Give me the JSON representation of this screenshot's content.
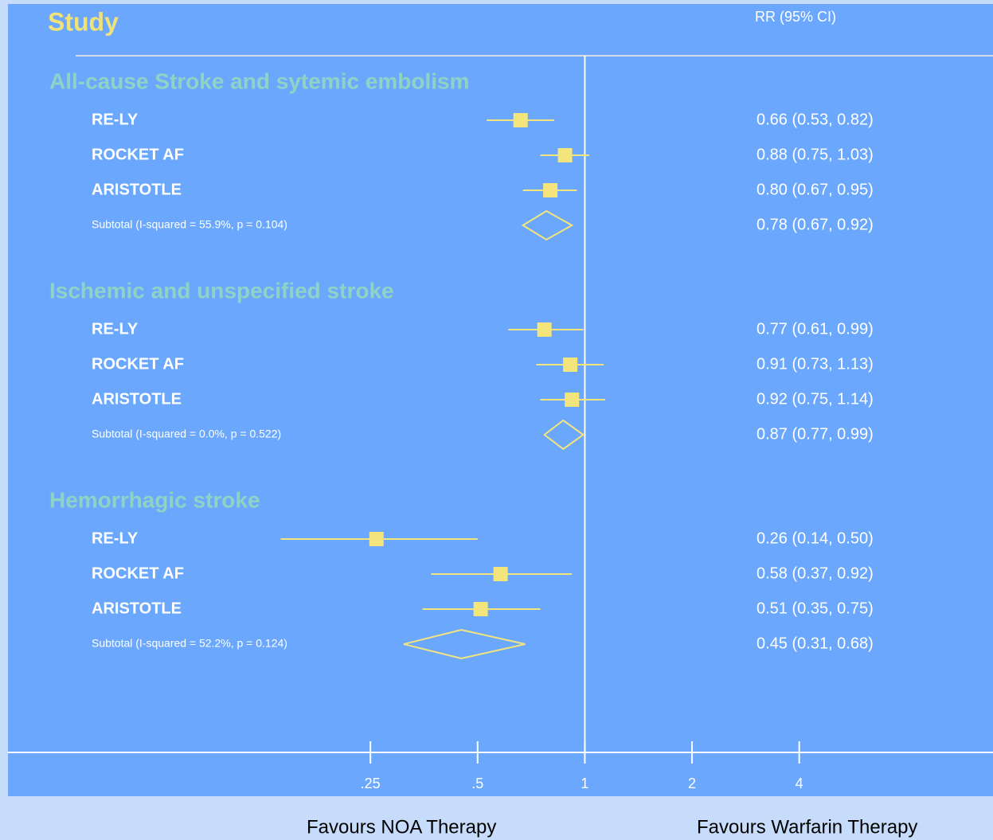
{
  "chart_data": {
    "type": "forest",
    "title": "Study",
    "estimate_header": "RR (95% CI)",
    "x_left_label": "Favours NOA Therapy",
    "x_right_label": "Favours Warfarin Therapy",
    "xscale": "log",
    "xlim": [
      0.024,
      14
    ],
    "xticks": [
      {
        "value": 0.25,
        "label": ".25"
      },
      {
        "value": 0.5,
        "label": ".5"
      },
      1,
      2,
      4
    ],
    "color": "#f4e47c",
    "group_color": "#8fd2c6",
    "groups": [
      {
        "name": "All-cause Stroke and sytemic embolism",
        "studies": [
          {
            "name": "RE-LY",
            "values": [
              0.66,
              0.53,
              0.82
            ],
            "value_label": "0.66 (0.53, 0.82)"
          },
          {
            "name": "ROCKET AF",
            "values": [
              0.88,
              0.75,
              1.03
            ],
            "value_label": "0.88 (0.75, 1.03)"
          },
          {
            "name": "ARISTOTLE",
            "values": [
              0.8,
              0.67,
              0.95
            ],
            "value_label": "0.80 (0.67, 0.95)"
          }
        ],
        "subtotal": {
          "label": "Subtotal  (I-squared = 55.9%, p = 0.104)",
          "values": [
            0.78,
            0.67,
            0.92
          ],
          "value_label": "0.78 (0.67, 0.92)"
        }
      },
      {
        "name": "Ischemic and unspecified stroke",
        "studies": [
          {
            "name": "RE-LY",
            "values": [
              0.77,
              0.61,
              0.99
            ],
            "value_label": "0.77 (0.61, 0.99)"
          },
          {
            "name": "ROCKET AF",
            "values": [
              0.91,
              0.73,
              1.13
            ],
            "value_label": "0.91 (0.73, 1.13)"
          },
          {
            "name": "ARISTOTLE",
            "values": [
              0.92,
              0.75,
              1.14
            ],
            "value_label": "0.92 (0.75, 1.14)"
          }
        ],
        "subtotal": {
          "label": "Subtotal  (I-squared = 0.0%, p = 0.522)",
          "values": [
            0.87,
            0.77,
            0.99
          ],
          "value_label": "0.87 (0.77, 0.99)"
        }
      },
      {
        "name": "Hemorrhagic stroke",
        "studies": [
          {
            "name": "RE-LY",
            "values": [
              0.26,
              0.14,
              0.5
            ],
            "value_label": "0.26 (0.14, 0.50)"
          },
          {
            "name": "ROCKET AF",
            "values": [
              0.58,
              0.37,
              0.92
            ],
            "value_label": "0.58 (0.37, 0.92)"
          },
          {
            "name": "ARISTOTLE",
            "values": [
              0.51,
              0.35,
              0.75
            ],
            "value_label": "0.51 (0.35, 0.75)"
          }
        ],
        "subtotal": {
          "label": "Subtotal  (I-squared = 52.2%, p = 0.124)",
          "values": [
            0.45,
            0.31,
            0.68
          ],
          "value_label": "0.45 (0.31, 0.68)"
        }
      }
    ]
  }
}
